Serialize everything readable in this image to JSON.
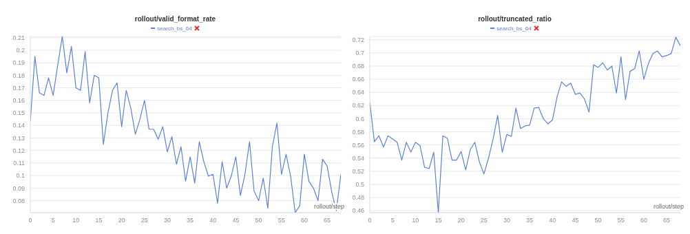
{
  "chart_data": [
    {
      "type": "line",
      "title": "rollout/valid_format_rate",
      "xlabel": "rollout/step",
      "legend": "top",
      "grid": "y",
      "x": [
        0,
        1,
        2,
        3,
        4,
        5,
        6,
        7,
        8,
        9,
        10,
        11,
        12,
        13,
        14,
        15,
        16,
        17,
        18,
        19,
        20,
        21,
        22,
        23,
        24,
        25,
        26,
        27,
        28,
        29,
        30,
        31,
        32,
        33,
        34,
        35,
        36,
        37,
        38,
        39,
        40,
        41,
        42,
        43,
        44,
        45,
        46,
        47,
        48,
        49,
        50,
        51,
        52,
        53,
        54,
        55,
        56,
        57,
        58,
        59,
        60,
        61,
        62,
        63,
        64,
        65,
        66,
        67,
        68
      ],
      "series": [
        {
          "name": "search_bs_64",
          "color": "#5b80dc",
          "values": [
            0.143,
            0.195,
            0.166,
            0.164,
            0.178,
            0.164,
            0.188,
            0.211,
            0.182,
            0.203,
            0.17,
            0.168,
            0.199,
            0.158,
            0.18,
            0.178,
            0.125,
            0.15,
            0.168,
            0.174,
            0.139,
            0.168,
            0.154,
            0.133,
            0.145,
            0.16,
            0.137,
            0.137,
            0.129,
            0.139,
            0.119,
            0.131,
            0.109,
            0.123,
            0.0955,
            0.115,
            0.094,
            0.127,
            0.111,
            0.0995,
            0.101,
            0.078,
            0.111,
            0.09,
            0.0995,
            0.115,
            0.084,
            0.101,
            0.127,
            0.0876,
            0.08,
            0.098,
            0.074,
            0.123,
            0.142,
            0.101,
            0.117,
            0.0995,
            0.0704,
            0.076,
            0.117,
            0.0955,
            0.09,
            0.08,
            0.113,
            0.1075,
            0.087,
            0.072,
            0.101
          ]
        }
      ],
      "xlim": [
        0,
        68
      ],
      "xticks": [
        0,
        5,
        10,
        15,
        20,
        25,
        30,
        35,
        40,
        45,
        50,
        55,
        60,
        65
      ],
      "ylim": [
        0.0704,
        0.211
      ],
      "yticks": [
        0.08,
        0.09,
        0.1,
        0.11,
        0.12,
        0.13,
        0.14,
        0.15,
        0.16,
        0.17,
        0.18,
        0.19,
        0.2,
        0.21
      ]
    },
    {
      "type": "line",
      "title": "rollout/truncated_ratio",
      "xlabel": "rollout/step",
      "legend": "top",
      "grid": "y",
      "x": [
        0,
        1,
        2,
        3,
        4,
        5,
        6,
        7,
        8,
        9,
        10,
        11,
        12,
        13,
        14,
        15,
        16,
        17,
        18,
        19,
        20,
        21,
        22,
        23,
        24,
        25,
        26,
        27,
        28,
        29,
        30,
        31,
        32,
        33,
        34,
        35,
        36,
        37,
        38,
        39,
        40,
        41,
        42,
        43,
        44,
        45,
        46,
        47,
        48,
        49,
        50,
        51,
        52,
        53,
        54,
        55,
        56,
        57,
        58,
        59,
        60,
        61,
        62,
        63,
        64,
        65,
        66,
        67,
        68
      ],
      "series": [
        {
          "name": "search_bs_64",
          "color": "#5b80dc",
          "values": [
            0.625,
            0.565,
            0.574,
            0.557,
            0.574,
            0.569,
            0.564,
            0.537,
            0.564,
            0.549,
            0.564,
            0.559,
            0.526,
            0.524,
            0.549,
            0.457,
            0.574,
            0.57,
            0.537,
            0.537,
            0.55,
            0.522,
            0.553,
            0.564,
            0.534,
            0.516,
            0.54,
            0.569,
            0.605,
            0.549,
            0.576,
            0.573,
            0.616,
            0.585,
            0.589,
            0.59,
            0.616,
            0.617,
            0.6,
            0.592,
            0.598,
            0.633,
            0.656,
            0.649,
            0.654,
            0.637,
            0.639,
            0.63,
            0.61,
            0.682,
            0.678,
            0.685,
            0.674,
            0.68,
            0.639,
            0.694,
            0.629,
            0.672,
            0.676,
            0.703,
            0.66,
            0.684,
            0.699,
            0.703,
            0.694,
            0.696,
            0.699,
            0.724,
            0.711
          ]
        }
      ],
      "xlim": [
        0,
        68
      ],
      "xticks": [
        0,
        5,
        10,
        15,
        20,
        25,
        30,
        35,
        40,
        45,
        50,
        55,
        60,
        65
      ],
      "ylim": [
        0.457,
        0.725
      ],
      "yticks": [
        0.46,
        0.48,
        0.5,
        0.52,
        0.54,
        0.56,
        0.58,
        0.6,
        0.62,
        0.64,
        0.66,
        0.68,
        0.7,
        0.72
      ]
    }
  ]
}
